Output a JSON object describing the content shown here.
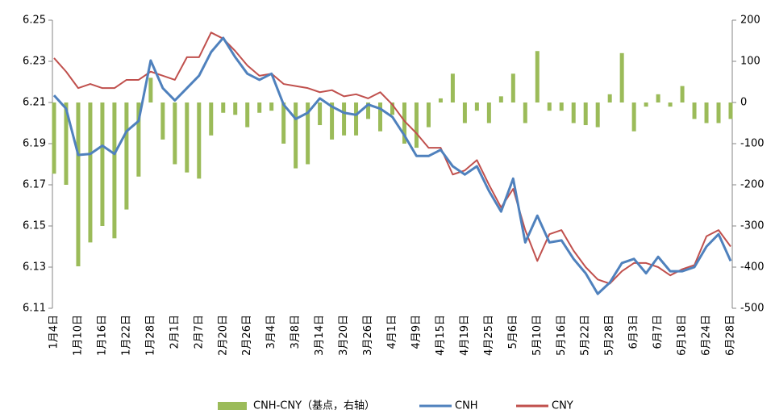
{
  "chart_data": {
    "type": "combo",
    "categories": [
      "1月4日",
      null,
      "1月10日",
      null,
      "1月16日",
      null,
      "1月22日",
      null,
      "1月28日",
      null,
      "2月1日",
      null,
      "2月7日",
      null,
      "2月20日",
      null,
      "2月26日",
      null,
      "3月4日",
      null,
      "3月8日",
      null,
      "3月14日",
      null,
      "3月20日",
      null,
      "3月26日",
      null,
      "4月1日",
      null,
      "4月9日",
      null,
      "4月15日",
      null,
      "4月19日",
      null,
      "4月25日",
      null,
      "5月6日",
      null,
      "5月10日",
      null,
      "5月16日",
      null,
      "5月22日",
      null,
      "5月28日",
      null,
      "6月3日",
      null,
      "6月7日",
      null,
      "6月18日",
      null,
      "6月24日",
      null,
      "6月28日"
    ],
    "series": [
      {
        "name": "CNH-CNY（基点，右轴）",
        "type": "bar",
        "axis": "y2",
        "color": "#9bbb59",
        "values": [
          -173,
          -200,
          -398,
          -340,
          -300,
          -330,
          -260,
          -180,
          60,
          -90,
          -150,
          -170,
          -185,
          -80,
          -25,
          -30,
          -60,
          -25,
          -20,
          -100,
          -160,
          -150,
          -55,
          -90,
          -80,
          -80,
          -40,
          -70,
          -30,
          -100,
          -110,
          -60,
          10,
          70,
          -50,
          -20,
          -50,
          15,
          70,
          -50,
          125,
          -20,
          -20,
          -50,
          -55,
          -60,
          20,
          120,
          -70,
          -10,
          20,
          -10,
          40,
          -40,
          -50,
          -50,
          -40
        ]
      },
      {
        "name": "CNH",
        "type": "line",
        "color": "#4f81bd",
        "values": [
          6.2135,
          6.207,
          6.1845,
          6.185,
          6.189,
          6.185,
          6.196,
          6.201,
          6.2304,
          6.217,
          6.211,
          6.217,
          6.223,
          6.2345,
          6.2414,
          6.232,
          6.224,
          6.221,
          6.224,
          6.209,
          6.202,
          6.205,
          6.212,
          6.208,
          6.205,
          6.204,
          6.209,
          6.207,
          6.203,
          6.194,
          6.184,
          6.184,
          6.187,
          6.179,
          6.175,
          6.179,
          6.167,
          6.157,
          6.173,
          6.142,
          6.155,
          6.142,
          6.143,
          6.134,
          6.127,
          6.117,
          6.1225,
          6.132,
          6.134,
          6.127,
          6.135,
          6.128,
          6.128,
          6.13,
          6.14,
          6.146,
          6.133
        ]
      },
      {
        "name": "CNY",
        "type": "line",
        "color": "#c0504d",
        "values": [
          6.2316,
          6.225,
          6.217,
          6.219,
          6.217,
          6.217,
          6.221,
          6.221,
          6.225,
          6.223,
          6.221,
          6.232,
          6.232,
          6.244,
          6.241,
          6.235,
          6.228,
          6.223,
          6.224,
          6.219,
          6.218,
          6.217,
          6.215,
          6.216,
          6.213,
          6.214,
          6.212,
          6.215,
          6.209,
          6.201,
          6.195,
          6.188,
          6.188,
          6.175,
          6.177,
          6.182,
          6.17,
          6.159,
          6.168,
          6.148,
          6.133,
          6.146,
          6.148,
          6.138,
          6.13,
          6.124,
          6.122,
          6.128,
          6.132,
          6.132,
          6.13,
          6.126,
          6.129,
          6.131,
          6.145,
          6.148,
          6.14
        ]
      }
    ],
    "ylim": [
      6.11,
      6.25
    ],
    "yticks": [
      6.11,
      6.13,
      6.15,
      6.17,
      6.19,
      6.21,
      6.23,
      6.25
    ],
    "y2lim": [
      -500,
      200
    ],
    "y2ticks": [
      -500,
      -400,
      -300,
      -200,
      -100,
      0,
      100,
      200
    ],
    "grid": false
  }
}
